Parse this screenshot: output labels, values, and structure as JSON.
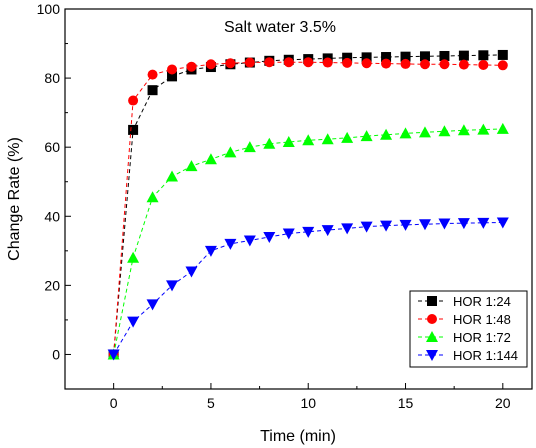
{
  "chart_data": {
    "type": "line",
    "title": "Salt water 3.5%",
    "xlabel": "Time (min)",
    "ylabel": "Change Rate (%)",
    "xlim": [
      -2.5,
      21.5
    ],
    "ylim": [
      -10,
      100
    ],
    "xticks": [
      0,
      5,
      10,
      15,
      20
    ],
    "yticks": [
      0,
      20,
      40,
      60,
      80,
      100
    ],
    "grid": false,
    "legend_position": "bottom-right",
    "x": [
      0,
      1,
      2,
      3,
      4,
      5,
      6,
      7,
      8,
      9,
      10,
      11,
      12,
      13,
      14,
      15,
      16,
      17,
      18,
      19,
      20
    ],
    "series": [
      {
        "name": "HOR 1:24",
        "color": "#000000",
        "marker": "square",
        "values": [
          0,
          65,
          76.5,
          80.5,
          82.5,
          83.2,
          84,
          84.5,
          85,
          85.3,
          85.5,
          85.7,
          85.9,
          86,
          86.1,
          86.2,
          86.3,
          86.4,
          86.5,
          86.6,
          86.7
        ]
      },
      {
        "name": "HOR 1:48",
        "color": "#ff0000",
        "marker": "circle",
        "values": [
          0,
          73.5,
          81,
          82.5,
          83.3,
          84,
          84.3,
          84.5,
          84.6,
          84.6,
          84.6,
          84.5,
          84.4,
          84.3,
          84.2,
          84.1,
          84,
          84,
          83.9,
          83.8,
          83.7
        ]
      },
      {
        "name": "HOR 1:72",
        "color": "#00ff00",
        "marker": "triangle-up",
        "values": [
          0,
          28,
          45.5,
          51.5,
          54.5,
          56.5,
          58.5,
          60,
          61,
          61.5,
          62,
          62.3,
          62.7,
          63.2,
          63.6,
          64,
          64.3,
          64.6,
          64.9,
          65.1,
          65.3
        ]
      },
      {
        "name": "HOR 1:144",
        "color": "#0000ff",
        "marker": "triangle-down",
        "values": [
          0,
          9.5,
          14.5,
          20,
          24,
          30,
          32,
          33,
          34,
          35,
          35.5,
          36,
          36.5,
          37,
          37.3,
          37.5,
          37.7,
          37.9,
          38,
          38.1,
          38.2
        ]
      }
    ]
  }
}
